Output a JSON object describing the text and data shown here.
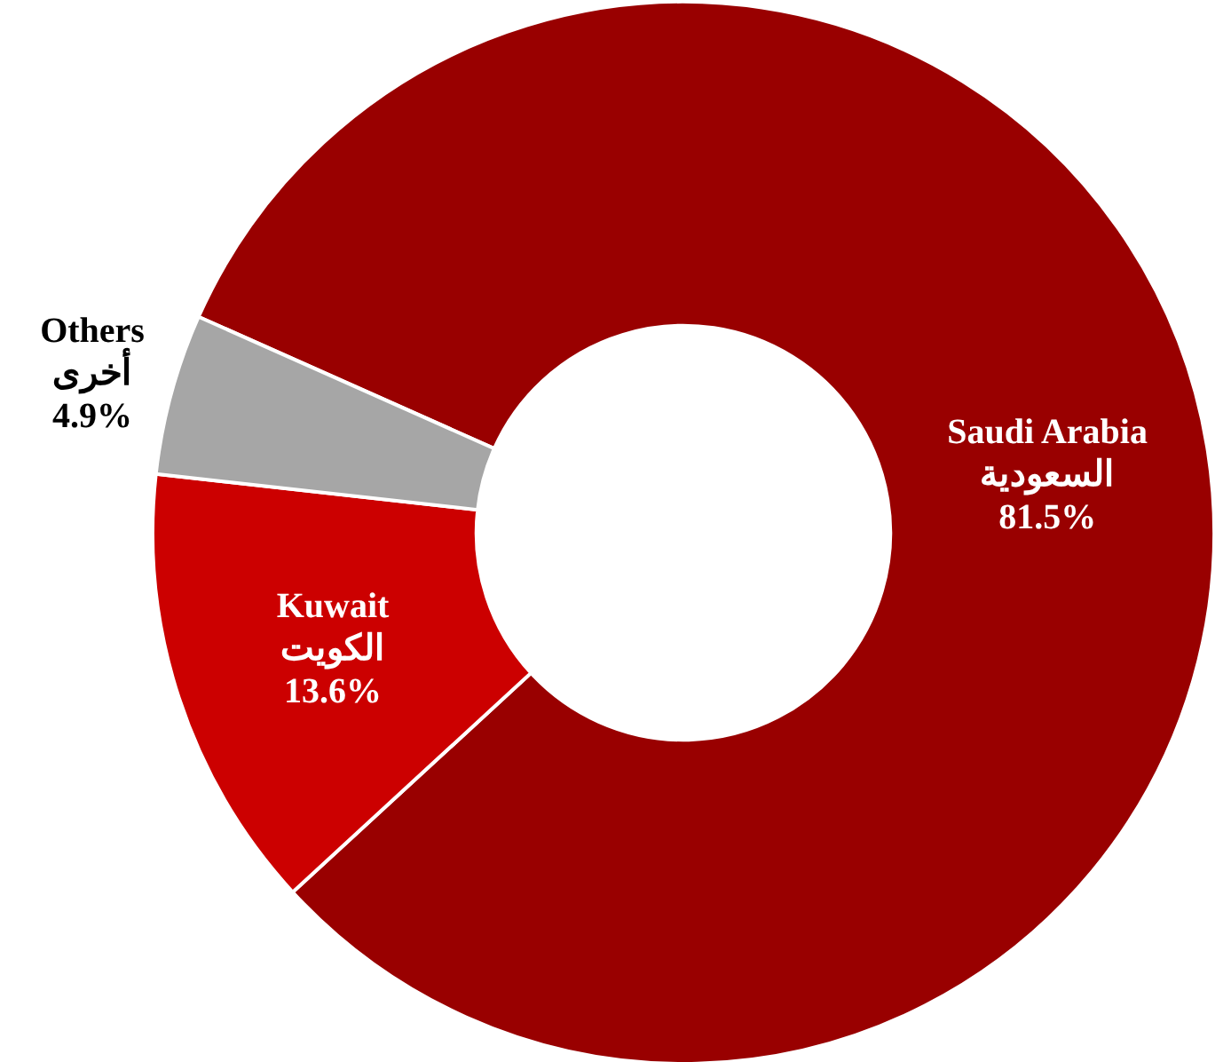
{
  "chart_data": {
    "type": "donut",
    "categories": [
      "Saudi Arabia\nالسعودية",
      "Kuwait\nالكويت",
      "Others\nأخرى"
    ],
    "values": [
      81.5,
      13.6,
      4.9
    ],
    "value_labels": [
      "81.5%",
      "13.6%",
      "4.9%"
    ],
    "colors": [
      "#990000",
      "#cc0000",
      "#a6a6a6"
    ]
  }
}
